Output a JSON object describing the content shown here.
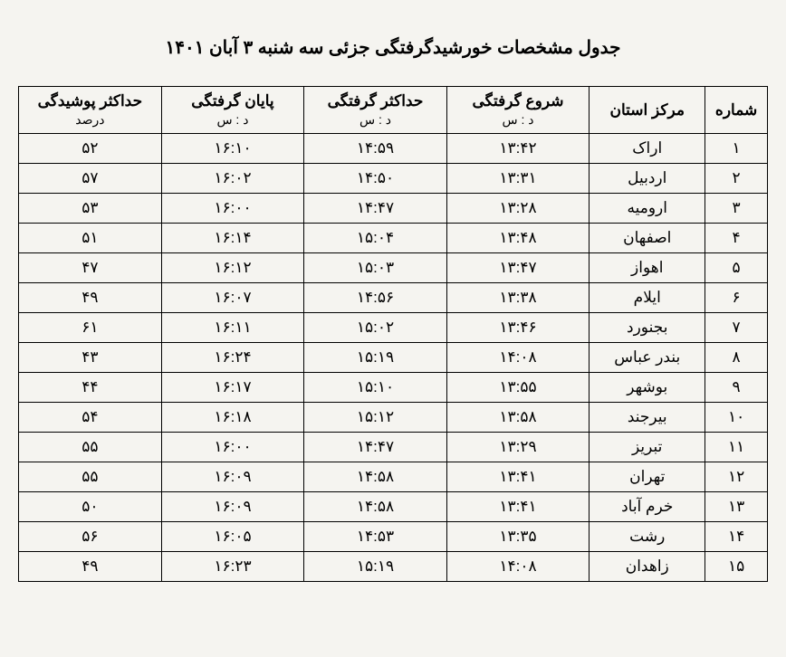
{
  "title": "جدول مشخصات خورشیدگرفتگی جزئی سه شنبه ۳ آبان ۱۴۰۱",
  "columns": [
    {
      "main": "شماره",
      "sub": ""
    },
    {
      "main": "مرکز استان",
      "sub": ""
    },
    {
      "main": "شروع گرفتگی",
      "sub": "د : س"
    },
    {
      "main": "حداکثر گرفتگی",
      "sub": "د : س"
    },
    {
      "main": "پایان گرفتگی",
      "sub": "د : س"
    },
    {
      "main": "حداکثر پوشیدگی",
      "sub": "درصد"
    }
  ],
  "rows": [
    {
      "num": "۱",
      "city": "اراک",
      "start": "۱۳:۴۲",
      "max": "۱۴:۵۹",
      "end": "۱۶:۱۰",
      "pct": "۵۲"
    },
    {
      "num": "۲",
      "city": "اردبیل",
      "start": "۱۳:۳۱",
      "max": "۱۴:۵۰",
      "end": "۱۶:۰۲",
      "pct": "۵۷"
    },
    {
      "num": "۳",
      "city": "ارومیه",
      "start": "۱۳:۲۸",
      "max": "۱۴:۴۷",
      "end": "۱۶:۰۰",
      "pct": "۵۳"
    },
    {
      "num": "۴",
      "city": "اصفهان",
      "start": "۱۳:۴۸",
      "max": "۱۵:۰۴",
      "end": "۱۶:۱۴",
      "pct": "۵۱"
    },
    {
      "num": "۵",
      "city": "اهواز",
      "start": "۱۳:۴۷",
      "max": "۱۵:۰۳",
      "end": "۱۶:۱۲",
      "pct": "۴۷"
    },
    {
      "num": "۶",
      "city": "ایلام",
      "start": "۱۳:۳۸",
      "max": "۱۴:۵۶",
      "end": "۱۶:۰۷",
      "pct": "۴۹"
    },
    {
      "num": "۷",
      "city": "بجنورد",
      "start": "۱۳:۴۶",
      "max": "۱۵:۰۲",
      "end": "۱۶:۱۱",
      "pct": "۶۱"
    },
    {
      "num": "۸",
      "city": "بندر عباس",
      "start": "۱۴:۰۸",
      "max": "۱۵:۱۹",
      "end": "۱۶:۲۴",
      "pct": "۴۳"
    },
    {
      "num": "۹",
      "city": "بوشهر",
      "start": "۱۳:۵۵",
      "max": "۱۵:۱۰",
      "end": "۱۶:۱۷",
      "pct": "۴۴"
    },
    {
      "num": "۱۰",
      "city": "بیرجند",
      "start": "۱۳:۵۸",
      "max": "۱۵:۱۲",
      "end": "۱۶:۱۸",
      "pct": "۵۴"
    },
    {
      "num": "۱۱",
      "city": "تبریز",
      "start": "۱۳:۲۹",
      "max": "۱۴:۴۷",
      "end": "۱۶:۰۰",
      "pct": "۵۵"
    },
    {
      "num": "۱۲",
      "city": "تهران",
      "start": "۱۳:۴۱",
      "max": "۱۴:۵۸",
      "end": "۱۶:۰۹",
      "pct": "۵۵"
    },
    {
      "num": "۱۳",
      "city": "خرم آباد",
      "start": "۱۳:۴۱",
      "max": "۱۴:۵۸",
      "end": "۱۶:۰۹",
      "pct": "۵۰"
    },
    {
      "num": "۱۴",
      "city": "رشت",
      "start": "۱۳:۳۵",
      "max": "۱۴:۵۳",
      "end": "۱۶:۰۵",
      "pct": "۵۶"
    },
    {
      "num": "۱۵",
      "city": "زاهدان",
      "start": "۱۴:۰۸",
      "max": "۱۵:۱۹",
      "end": "۱۶:۲۳",
      "pct": "۴۹"
    }
  ],
  "styling": {
    "background_color": "#f5f4f0",
    "border_color": "#000000",
    "text_color": "#000000",
    "title_fontsize": 20,
    "header_fontsize": 17,
    "cell_fontsize": 17,
    "sub_header_fontsize": 14,
    "border_width": 1.5,
    "table_type": "table",
    "direction": "rtl",
    "column_widths": {
      "num": 60,
      "city": 120,
      "time": 150,
      "pct": 150
    }
  }
}
